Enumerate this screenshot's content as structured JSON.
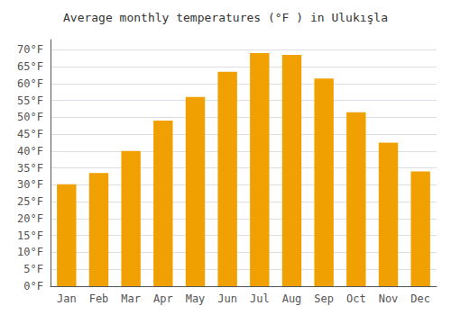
{
  "chart_data": {
    "type": "bar",
    "title": "Average monthly temperatures (°F ) in Ulukışla",
    "categories": [
      "Jan",
      "Feb",
      "Mar",
      "Apr",
      "May",
      "Jun",
      "Jul",
      "Aug",
      "Sep",
      "Oct",
      "Nov",
      "Dec"
    ],
    "values": [
      30.2,
      33.5,
      40.0,
      49.0,
      56.0,
      63.5,
      69.0,
      68.5,
      61.5,
      51.5,
      42.5,
      34.0
    ],
    "color": "#F0A000",
    "ylim": [
      0,
      73
    ],
    "yticks": [
      {
        "value": 0,
        "label": "0°F"
      },
      {
        "value": 5,
        "label": "5°F"
      },
      {
        "value": 10,
        "label": "10°F"
      },
      {
        "value": 15,
        "label": "15°F"
      },
      {
        "value": 20,
        "label": "20°F"
      },
      {
        "value": 25,
        "label": "25°F"
      },
      {
        "value": 30,
        "label": "30°F"
      },
      {
        "value": 35,
        "label": "35°F"
      },
      {
        "value": 40,
        "label": "40°F"
      },
      {
        "value": 45,
        "label": "45°F"
      },
      {
        "value": 50,
        "label": "50°F"
      },
      {
        "value": 55,
        "label": "55°F"
      },
      {
        "value": 60,
        "label": "60°F"
      },
      {
        "value": 65,
        "label": "65°F"
      },
      {
        "value": 70,
        "label": "70°F"
      }
    ],
    "grid": true
  }
}
